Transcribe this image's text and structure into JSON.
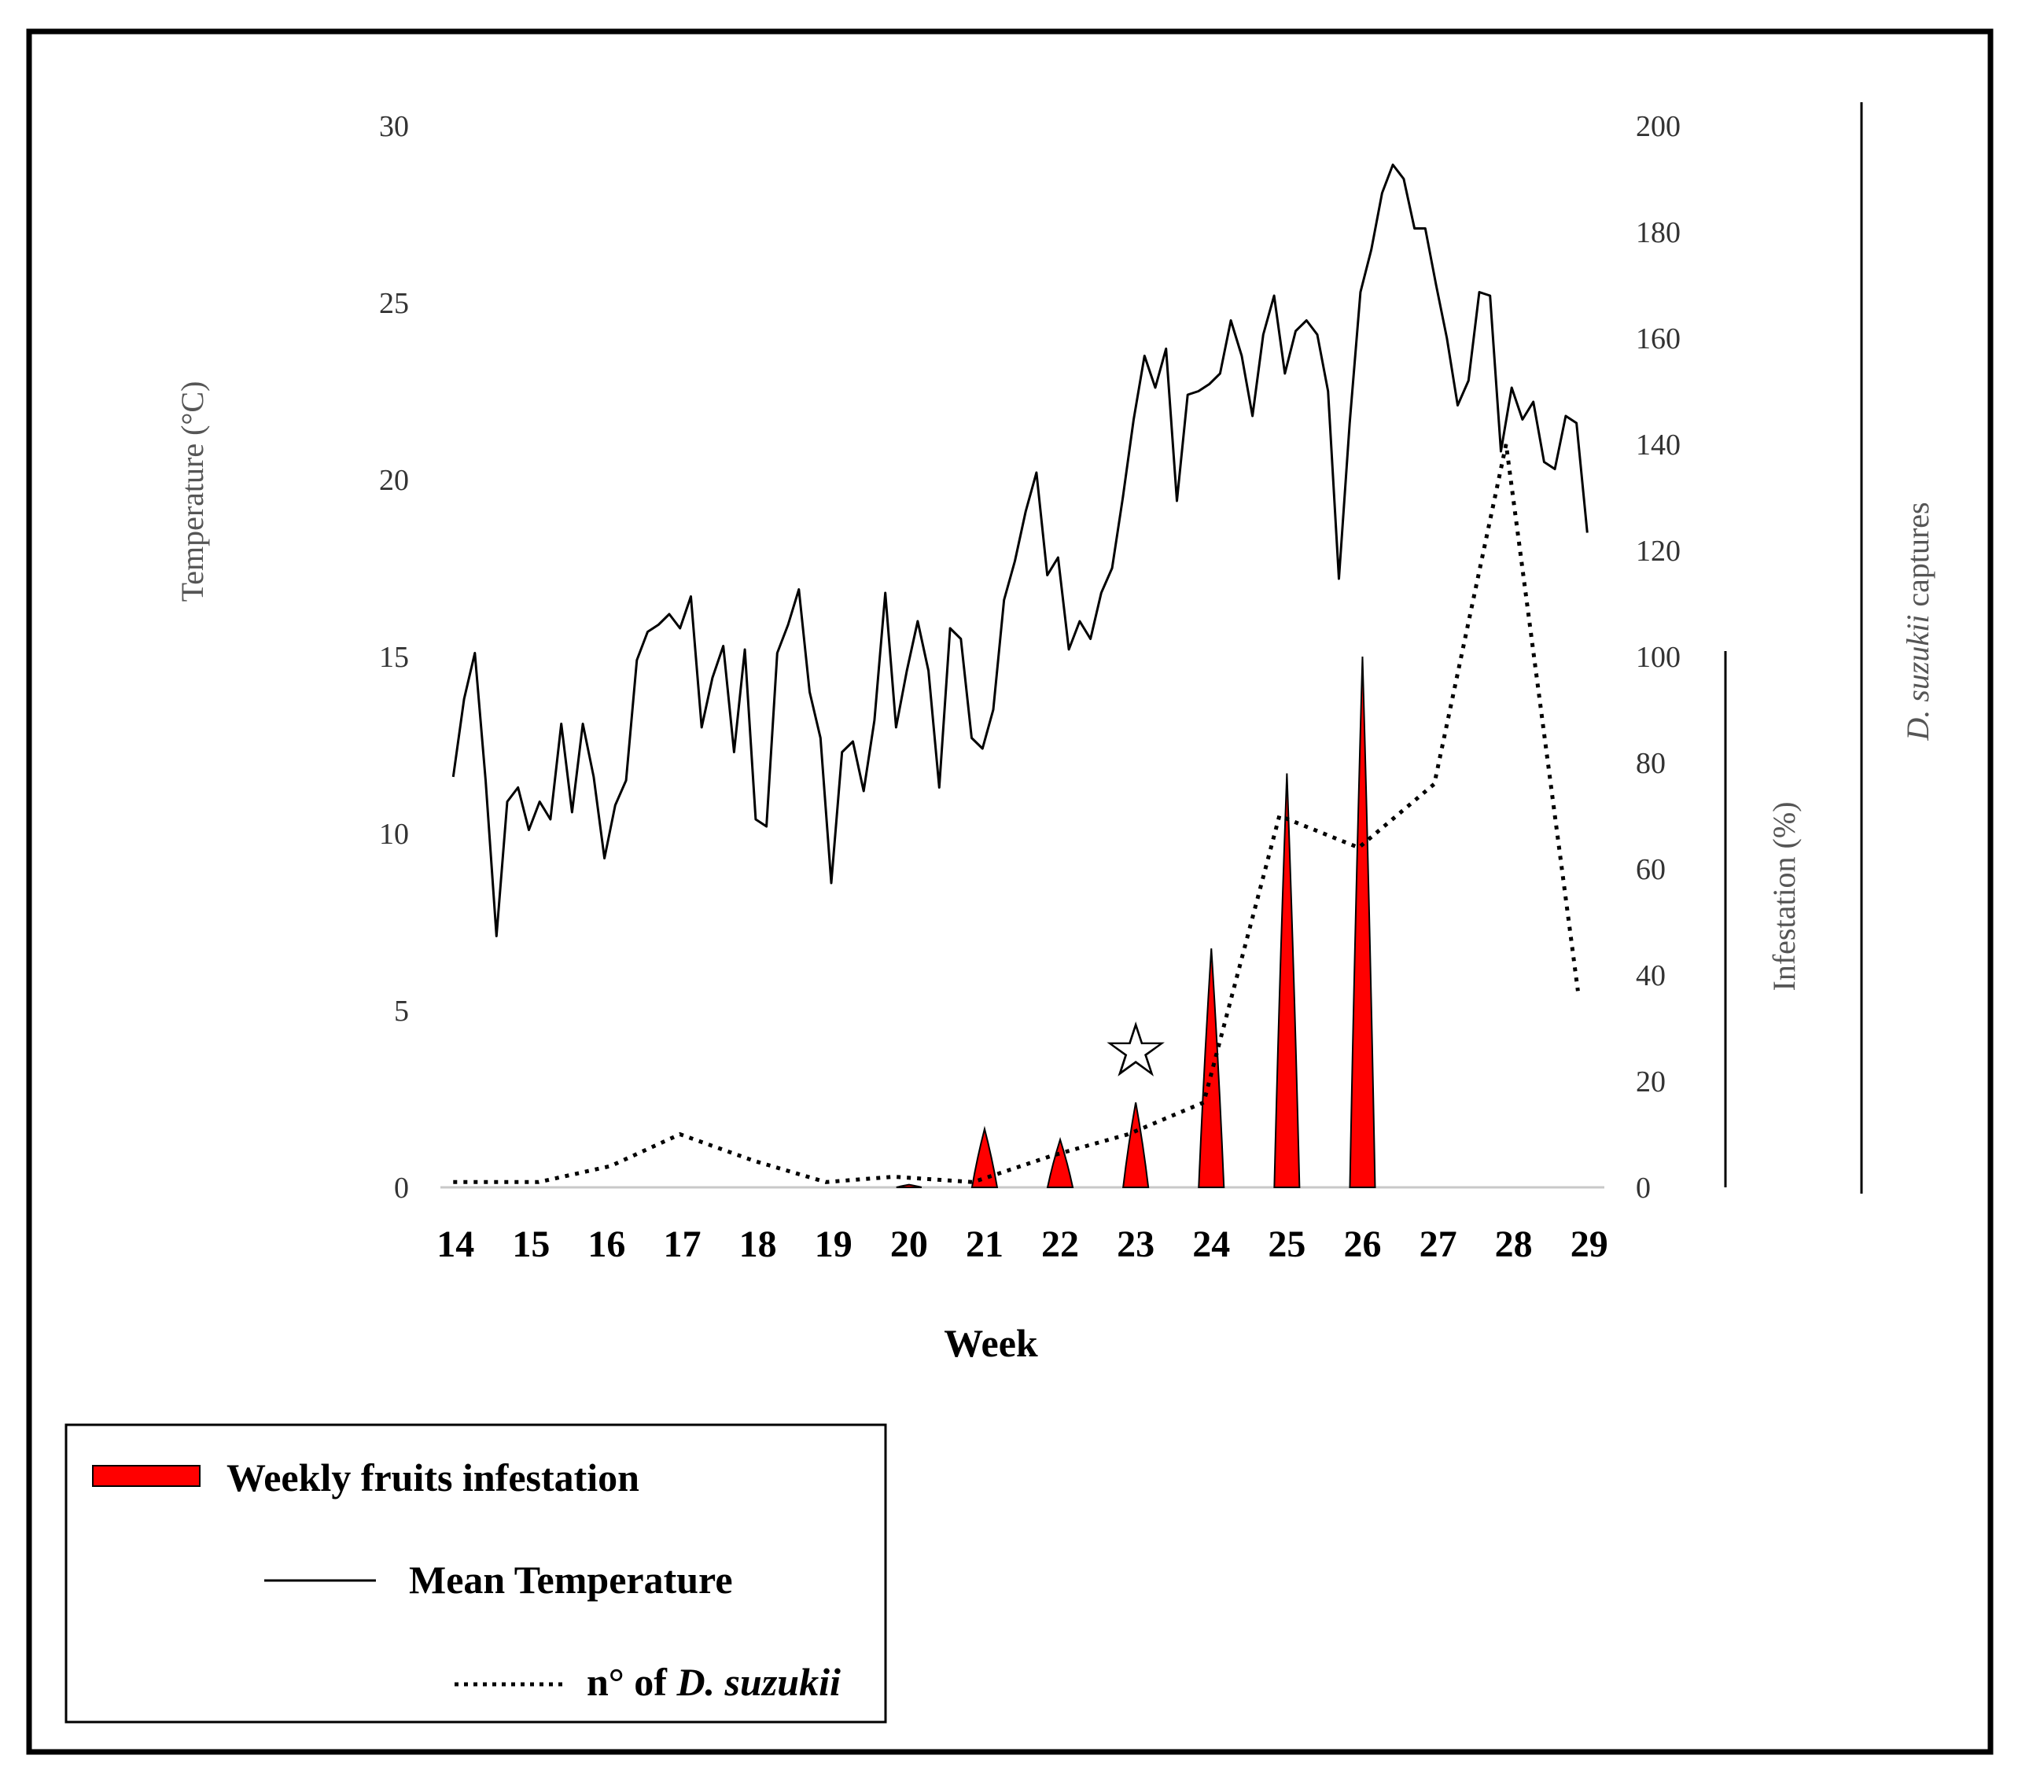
{
  "chart_data": {
    "type": "line",
    "title": "",
    "xlabel": "Week",
    "ylabel_left": "Temperature (°C)",
    "ylabel_right_infestation": "Infestation (%)",
    "ylabel_right_captures": "D. suzukii captures",
    "ylabel_right_captures_italic": "D. suzukii",
    "ylabel_right_captures_rest": " captures",
    "weeks": [
      14,
      15,
      16,
      17,
      18,
      19,
      20,
      21,
      22,
      23,
      24,
      25,
      26,
      27,
      28,
      29
    ],
    "xlim": [
      13.8,
      29.2
    ],
    "ylim_left": [
      0,
      30
    ],
    "ylim_right": [
      0,
      200
    ],
    "yticks_left": [
      0,
      5,
      10,
      15,
      20,
      25,
      30
    ],
    "yticks_right": [
      0,
      20,
      40,
      60,
      80,
      100,
      120,
      140,
      160,
      180,
      200
    ],
    "series": [
      {
        "name": "Mean Temperature",
        "axis": "left",
        "style": "solid",
        "color": "#000000",
        "x_start": 13.97,
        "x_step": 0.1429,
        "values": [
          11.6,
          13.8,
          15.1,
          11.5,
          7.1,
          10.9,
          11.3,
          10.1,
          10.9,
          10.4,
          13.1,
          10.6,
          13.1,
          11.6,
          9.3,
          10.8,
          11.5,
          14.9,
          15.7,
          15.9,
          16.2,
          15.8,
          16.7,
          13.0,
          14.4,
          15.3,
          12.3,
          15.2,
          10.4,
          10.2,
          15.1,
          15.9,
          16.9,
          14.0,
          12.7,
          8.6,
          12.3,
          12.6,
          11.2,
          13.2,
          16.8,
          13.0,
          14.6,
          16.0,
          14.6,
          11.3,
          15.8,
          15.5,
          12.7,
          12.4,
          13.5,
          16.6,
          17.7,
          19.1,
          20.2,
          17.3,
          17.8,
          15.2,
          16.0,
          15.5,
          16.8,
          17.5,
          19.5,
          21.7,
          23.5,
          22.6,
          23.7,
          19.4,
          22.4,
          22.5,
          22.7,
          23.0,
          24.5,
          23.5,
          21.8,
          24.1,
          25.2,
          23.0,
          24.2,
          24.5,
          24.1,
          22.5,
          17.2,
          21.6,
          25.3,
          26.5,
          28.1,
          28.9,
          28.5,
          27.1,
          27.1,
          25.5,
          24.0,
          22.1,
          22.8,
          25.3,
          25.2,
          20.8,
          22.6,
          21.7,
          22.2,
          20.5,
          20.3,
          21.8,
          21.6,
          18.5
        ]
      },
      {
        "name": "n° of D. suzukii",
        "axis": "right",
        "style": "dotted",
        "color": "#000000",
        "x": [
          13.97,
          15.1,
          16.05,
          16.97,
          17.95,
          18.9,
          19.8,
          20.85,
          21.9,
          22.9,
          23.9,
          24.9,
          25.95,
          26.95,
          27.9,
          28.85
        ],
        "values": [
          1,
          1,
          4,
          10,
          5,
          1,
          2,
          1,
          6,
          10,
          16,
          70,
          64,
          76,
          140,
          37
        ]
      },
      {
        "name": "Weekly fruits infestation",
        "axis": "right",
        "style": "filled-spikes",
        "color": "#ff0000",
        "x": [
          20,
          21,
          22,
          23,
          24,
          25,
          26
        ],
        "values": [
          0.5,
          11,
          9,
          16,
          45,
          78,
          100
        ]
      }
    ],
    "annotations": [
      {
        "type": "star",
        "x": 23,
        "y_right": 26,
        "text": "☆"
      }
    ],
    "legend": {
      "placement": "bottom-left",
      "entries": [
        {
          "label": "Weekly fruits infestation",
          "marker": "red-bar"
        },
        {
          "label": "Mean Temperature",
          "marker": "solid-line"
        },
        {
          "label_prefix": "n° of ",
          "label_italic": "D. suzukii",
          "marker": "dotted-line"
        }
      ]
    }
  },
  "colors": {
    "background": "#ffffff",
    "frame": "#000000",
    "infestation_fill": "#ff0000",
    "line": "#000000"
  }
}
